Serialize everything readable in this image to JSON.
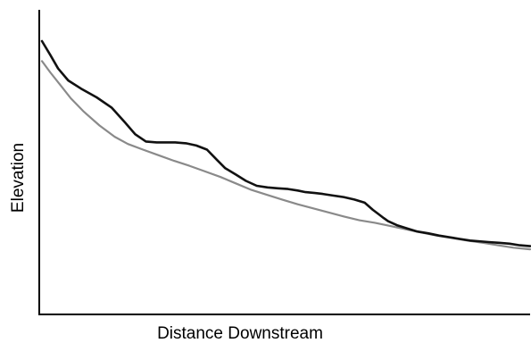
{
  "chart_data": {
    "type": "line",
    "title": "",
    "xlabel": "Distance Downstream",
    "ylabel": "Elevation",
    "xlim": [
      0,
      100
    ],
    "ylim": [
      0,
      100
    ],
    "grid": false,
    "series": [
      {
        "color": "#111111",
        "x": [
          0,
          1.7,
          3.3,
          5.4,
          8.0,
          11.2,
          14.3,
          17.0,
          19.1,
          21.3,
          23.5,
          25.2,
          27.3,
          29.5,
          31.6,
          33.8,
          35.9,
          37.5,
          39.7,
          41.8,
          44.0,
          46.2,
          48.3,
          50.4,
          52.4,
          54.0,
          55.9,
          57.5,
          59.6,
          61.8,
          64.0,
          66.1,
          67.8,
          68.9,
          70.0,
          70.9,
          72.7,
          74.8,
          76.9,
          79.1,
          81.3,
          83.4,
          85.6,
          87.7,
          89.3,
          91.5,
          93.6,
          95.8,
          97.9,
          100
        ],
        "y": [
          100,
          93.9,
          87.8,
          82.5,
          78.9,
          75.0,
          70.4,
          63.9,
          58.6,
          55.4,
          55.0,
          55.0,
          55.0,
          54.6,
          53.6,
          51.8,
          47.1,
          43.6,
          40.7,
          37.9,
          35.7,
          35.0,
          34.6,
          34.3,
          33.6,
          32.9,
          32.5,
          32.1,
          31.4,
          30.7,
          29.6,
          28.2,
          25.0,
          23.2,
          21.4,
          20.0,
          18.2,
          16.8,
          15.4,
          14.6,
          13.6,
          12.9,
          12.1,
          11.4,
          11.1,
          10.7,
          10.4,
          10.0,
          9.3,
          8.9
        ]
      },
      {
        "color": "#8a8a8a",
        "x": [
          0,
          1.7,
          3.8,
          5.9,
          8.6,
          11.8,
          14.9,
          17.6,
          20.7,
          23.9,
          27.1,
          30.2,
          33.4,
          36.6,
          39.7,
          42.9,
          46.0,
          49.2,
          52.4,
          55.5,
          58.7,
          61.8,
          65.0,
          68.2,
          71.3,
          74.5,
          77.6,
          80.8,
          84.0,
          87.1,
          90.3,
          93.4,
          96.6,
          100
        ],
        "y": [
          91.1,
          86.1,
          80.4,
          74.6,
          68.6,
          62.5,
          57.5,
          54.3,
          51.8,
          49.3,
          46.8,
          44.6,
          42.1,
          39.6,
          36.8,
          33.9,
          31.8,
          29.6,
          27.5,
          25.7,
          23.9,
          22.1,
          20.4,
          19.3,
          17.9,
          16.4,
          15.0,
          13.6,
          12.5,
          11.4,
          10.4,
          9.3,
          8.2,
          7.5
        ]
      }
    ]
  }
}
